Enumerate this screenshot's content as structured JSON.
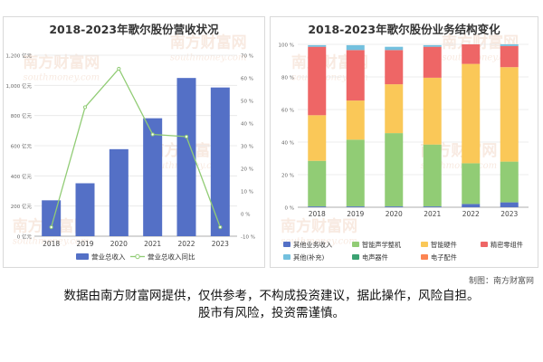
{
  "charts": {
    "left_title": "2018-2023年歌尔股份营收状况",
    "right_title": "2018-2023年歌尔股份业务结构变化"
  },
  "watermark": {
    "brand_cn": "南方财富网",
    "brand_url": "southmoney.com"
  },
  "colors": {
    "bar_blue": "#5470c6",
    "line_green": "#91cc75",
    "seg_other_business": "#5470c6",
    "seg_smart_acoustic": "#91cc75",
    "seg_smart_hardware": "#fac858",
    "seg_precision_parts": "#ee6666",
    "seg_other_supplement": "#73c0de",
    "seg_electroacoustic": "#3ba272",
    "seg_electronic_parts": "#fc8452"
  },
  "footer": {
    "credit": "制图：南方财富网",
    "line1": "数据由南方财富网提供，仅供参考，不构成投资建议，据此操作，风险自担。",
    "line2": "股市有风险，投资需谨慎。"
  },
  "chart_data": [
    {
      "type": "bar",
      "title": "2018-2023年歌尔股份营收状况",
      "categories": [
        "2018",
        "2019",
        "2020",
        "2021",
        "2022",
        "2023"
      ],
      "ylim": [
        0,
        1200
      ],
      "yticks": [
        0,
        200,
        400,
        600,
        800,
        1000,
        1200
      ],
      "ytick_labels": [
        "0 亿元",
        "200 亿元",
        "400 亿元",
        "600 亿元",
        "800 亿元",
        "1,000 亿元",
        "1,200 亿元"
      ],
      "y2lim": [
        -10,
        70
      ],
      "y2ticks": [
        -10,
        0,
        10,
        20,
        30,
        40,
        50,
        60,
        70
      ],
      "y2tick_labels": [
        "-10 %",
        "0 %",
        "10 %",
        "20 %",
        "30 %",
        "40 %",
        "50 %",
        "60 %",
        "70 %"
      ],
      "series": [
        {
          "name": "营业总收入",
          "type": "bar",
          "axis": "left",
          "values": [
            238,
            351,
            577,
            782,
            1049,
            986
          ]
        },
        {
          "name": "营业总收入同比",
          "type": "line",
          "axis": "right",
          "values": [
            -6,
            47,
            64,
            35,
            34,
            -6
          ]
        }
      ],
      "legend": "bottom",
      "grid": true
    },
    {
      "type": "bar",
      "stacked": true,
      "title": "2018-2023年歌尔股份业务结构变化",
      "categories": [
        "2018",
        "2019",
        "2020",
        "2021",
        "2022",
        "2023"
      ],
      "ylim": [
        0,
        100
      ],
      "yticks": [
        0,
        20,
        40,
        60,
        80,
        100
      ],
      "ytick_labels": [
        "0 %",
        "20 %",
        "40 %",
        "60 %",
        "80 %",
        "100 %"
      ],
      "series": [
        {
          "name": "其他业务收入",
          "values": [
            0.5,
            0.5,
            0.5,
            0.5,
            2,
            3
          ]
        },
        {
          "name": "智能声学整机",
          "values": [
            28,
            41,
            45,
            38,
            25,
            25
          ]
        },
        {
          "name": "智能硬件",
          "values": [
            28,
            24,
            30,
            41,
            61,
            58
          ]
        },
        {
          "name": "精密零组件",
          "values": [
            42,
            31,
            21,
            19,
            12,
            13
          ]
        },
        {
          "name": "其他(补充)",
          "values": [
            1,
            3,
            2,
            1,
            0,
            1
          ]
        },
        {
          "name": "电声器件",
          "values": [
            0,
            0,
            0,
            0,
            0,
            0
          ]
        },
        {
          "name": "电子配件",
          "values": [
            0,
            0,
            0,
            0,
            0,
            0
          ]
        }
      ],
      "legend": "bottom",
      "grid": true
    }
  ]
}
